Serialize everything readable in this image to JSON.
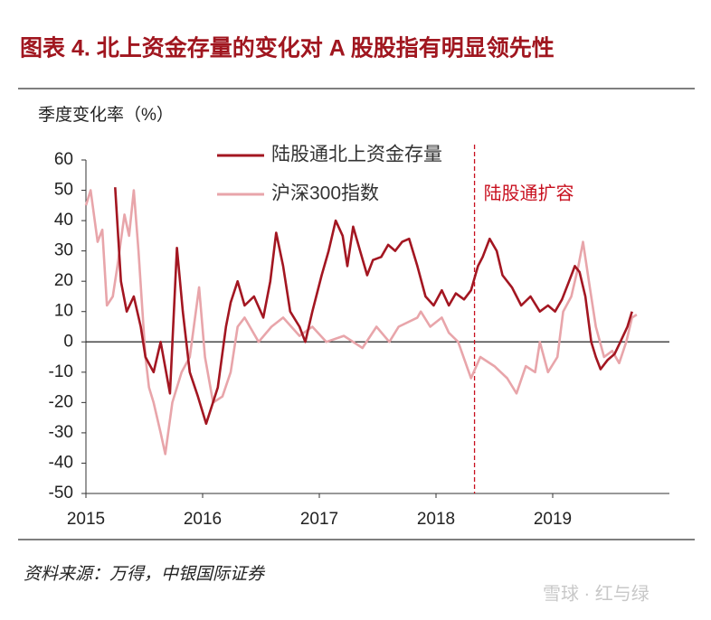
{
  "chart_data": {
    "type": "line",
    "title": "图表 4. 北上资金存量的变化对 A 股股指有明显领先性",
    "y_label": "季度变化率（%）",
    "source": "资料来源：万得，中银国际证券",
    "watermark": "雪球 · 红与绿",
    "xlim": [
      2015,
      2020
    ],
    "xticks": [
      2015,
      2016,
      2017,
      2018,
      2019
    ],
    "ylim": [
      -50,
      60
    ],
    "yticks": [
      -50,
      -40,
      -30,
      -20,
      -10,
      0,
      10,
      20,
      30,
      40,
      50,
      60
    ],
    "annotations": [
      {
        "text": "陆股通扩容",
        "x": 2018.33,
        "color": "#c8101f"
      }
    ],
    "series": [
      {
        "name": "陆股通北上资金存量",
        "color": "#a31621",
        "x": [
          2015.25,
          2015.3,
          2015.35,
          2015.41,
          2015.47,
          2015.51,
          2015.58,
          2015.64,
          2015.72,
          2015.78,
          2015.83,
          2015.89,
          2015.96,
          2016.03,
          2016.13,
          2016.2,
          2016.24,
          2016.3,
          2016.36,
          2016.44,
          2016.52,
          2016.58,
          2016.63,
          2016.69,
          2016.75,
          2016.83,
          2016.88,
          2016.94,
          2017.02,
          2017.08,
          2017.14,
          2017.2,
          2017.24,
          2017.29,
          2017.35,
          2017.41,
          2017.46,
          2017.53,
          2017.59,
          2017.65,
          2017.71,
          2017.77,
          2017.84,
          2017.91,
          2017.98,
          2018.05,
          2018.11,
          2018.17,
          2018.24,
          2018.3,
          2018.36,
          2018.4,
          2018.46,
          2018.52,
          2018.57,
          2018.65,
          2018.73,
          2018.81,
          2018.89,
          2018.96,
          2019.02,
          2019.08,
          2019.14,
          2019.19,
          2019.23,
          2019.28,
          2019.33,
          2019.37,
          2019.41,
          2019.47,
          2019.53,
          2019.58,
          2019.64,
          2019.68
        ],
        "values": [
          51,
          20,
          10,
          15,
          5,
          -5,
          -10,
          0,
          -17,
          31,
          10,
          -10,
          -18,
          -27,
          -15,
          5,
          13,
          20,
          12,
          15,
          8,
          20,
          36,
          25,
          10,
          5,
          0,
          10,
          22,
          30,
          40,
          35,
          25,
          38,
          30,
          22,
          27,
          28,
          32,
          30,
          33,
          34,
          25,
          15,
          12,
          17,
          12,
          16,
          14,
          17,
          25,
          28,
          34,
          30,
          22,
          18,
          12,
          15,
          10,
          12,
          10,
          14,
          20,
          25,
          23,
          15,
          0,
          -5,
          -9,
          -6,
          -4,
          0,
          5,
          10
        ]
      },
      {
        "name": "沪深300指数",
        "color": "#e8a5aa",
        "x": [
          2015.0,
          2015.04,
          2015.1,
          2015.14,
          2015.18,
          2015.23,
          2015.27,
          2015.33,
          2015.37,
          2015.41,
          2015.45,
          2015.51,
          2015.54,
          2015.58,
          2015.64,
          2015.68,
          2015.74,
          2015.82,
          2015.89,
          2015.97,
          2016.02,
          2016.09,
          2016.17,
          2016.24,
          2016.3,
          2016.36,
          2016.48,
          2016.59,
          2016.69,
          2016.83,
          2016.94,
          2017.06,
          2017.21,
          2017.37,
          2017.49,
          2017.6,
          2017.68,
          2017.84,
          2017.87,
          2017.95,
          2018.05,
          2018.11,
          2018.19,
          2018.3,
          2018.38,
          2018.5,
          2018.61,
          2018.69,
          2018.77,
          2018.85,
          2018.89,
          2018.96,
          2019.04,
          2019.09,
          2019.16,
          2019.22,
          2019.26,
          2019.31,
          2019.37,
          2019.44,
          2019.51,
          2019.57,
          2019.63,
          2019.68,
          2019.72
        ],
        "values": [
          45,
          50,
          33,
          37,
          12,
          15,
          25,
          42,
          35,
          50,
          30,
          -5,
          -15,
          -20,
          -30,
          -37,
          -20,
          -10,
          -5,
          18,
          -5,
          -20,
          -18,
          -10,
          5,
          8,
          0,
          5,
          8,
          2,
          5,
          0,
          2,
          -2,
          5,
          0,
          5,
          8,
          10,
          5,
          8,
          3,
          0,
          -12,
          -5,
          -8,
          -12,
          -17,
          -8,
          -10,
          0,
          -10,
          -5,
          10,
          15,
          25,
          33,
          20,
          5,
          -5,
          -3,
          -7,
          0,
          8,
          9
        ]
      }
    ]
  }
}
